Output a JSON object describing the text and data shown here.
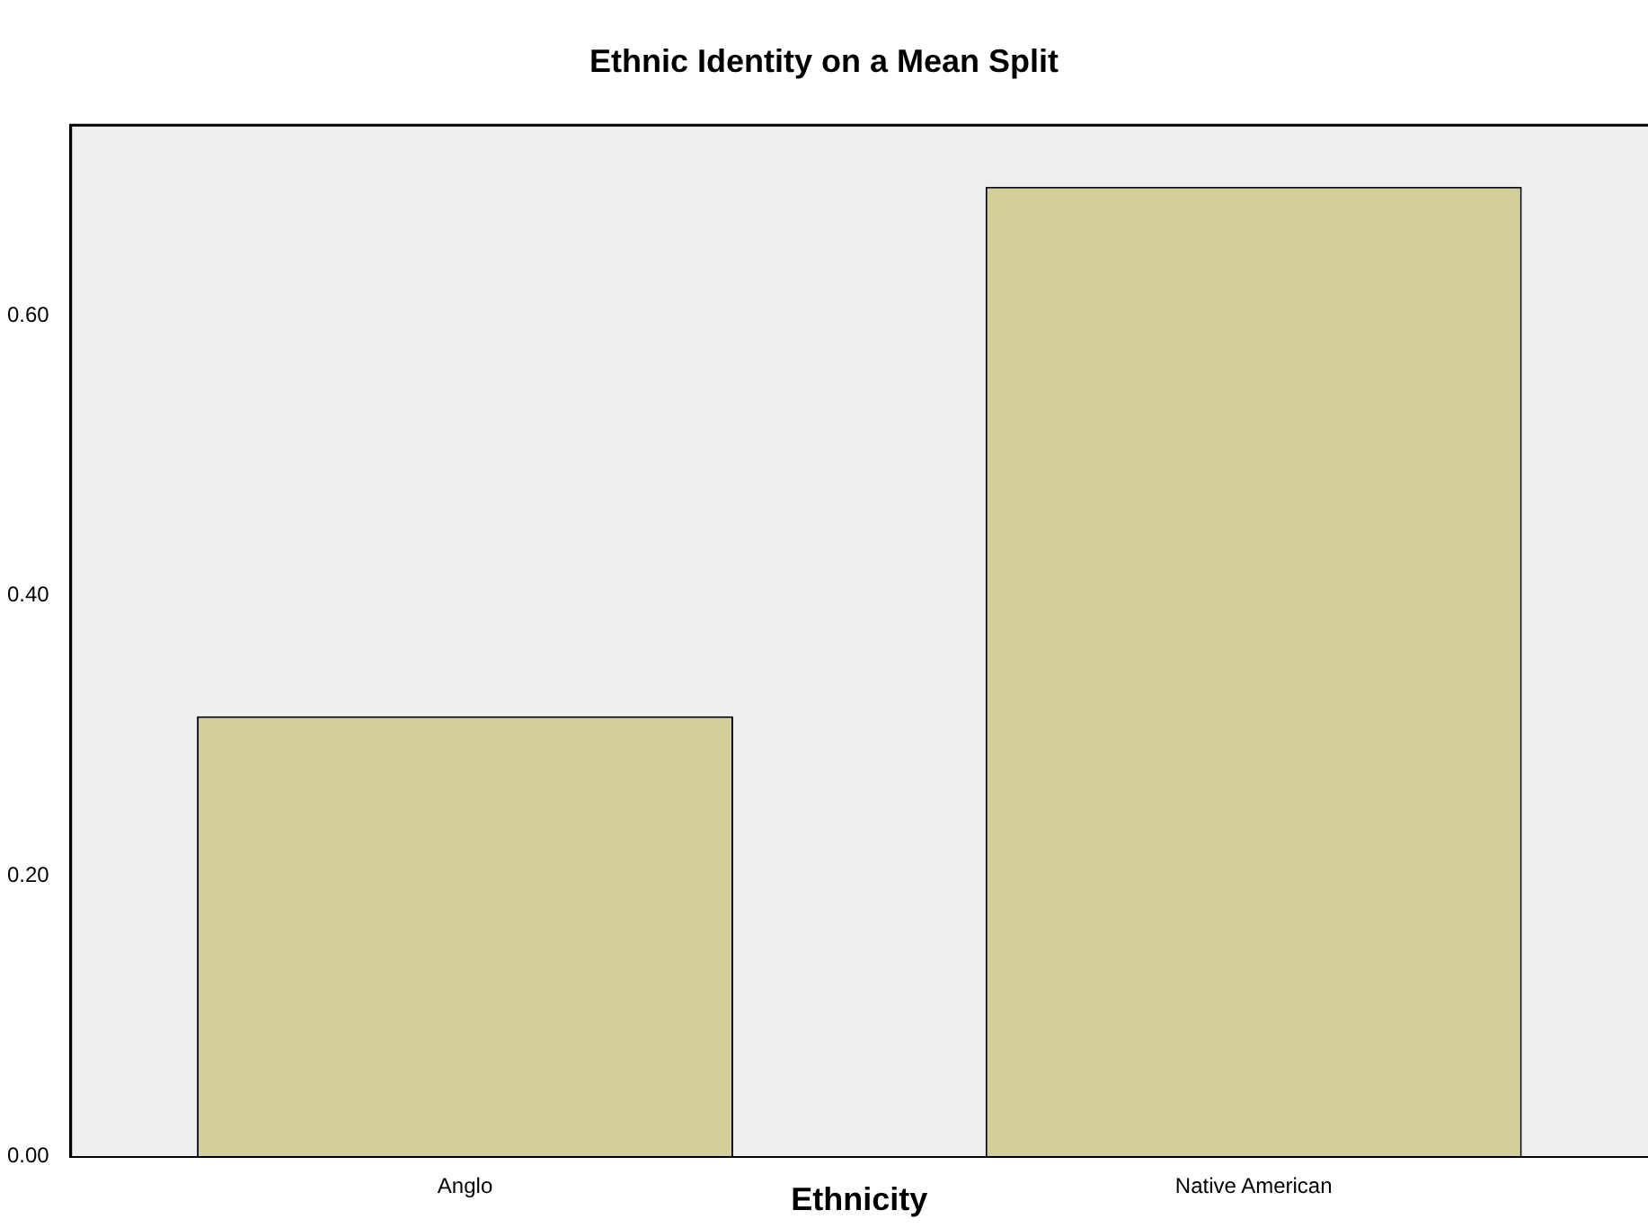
{
  "chart_data": {
    "type": "bar",
    "title": "Ethnic Identity on a Mean Split",
    "xlabel": "Ethnicity",
    "categories": [
      "Anglo",
      "Native American"
    ],
    "values": [
      0.314,
      0.692
    ],
    "color": "#d3cf99",
    "ylim": [
      0,
      0.736
    ],
    "yticks": [
      {
        "value": 0,
        "label": "0.00"
      },
      {
        "value": 0.2,
        "label": "0.20"
      },
      {
        "value": 0.4,
        "label": "0.40"
      },
      {
        "value": 0.6,
        "label": "0.60"
      }
    ],
    "grid": false,
    "legend": false
  }
}
